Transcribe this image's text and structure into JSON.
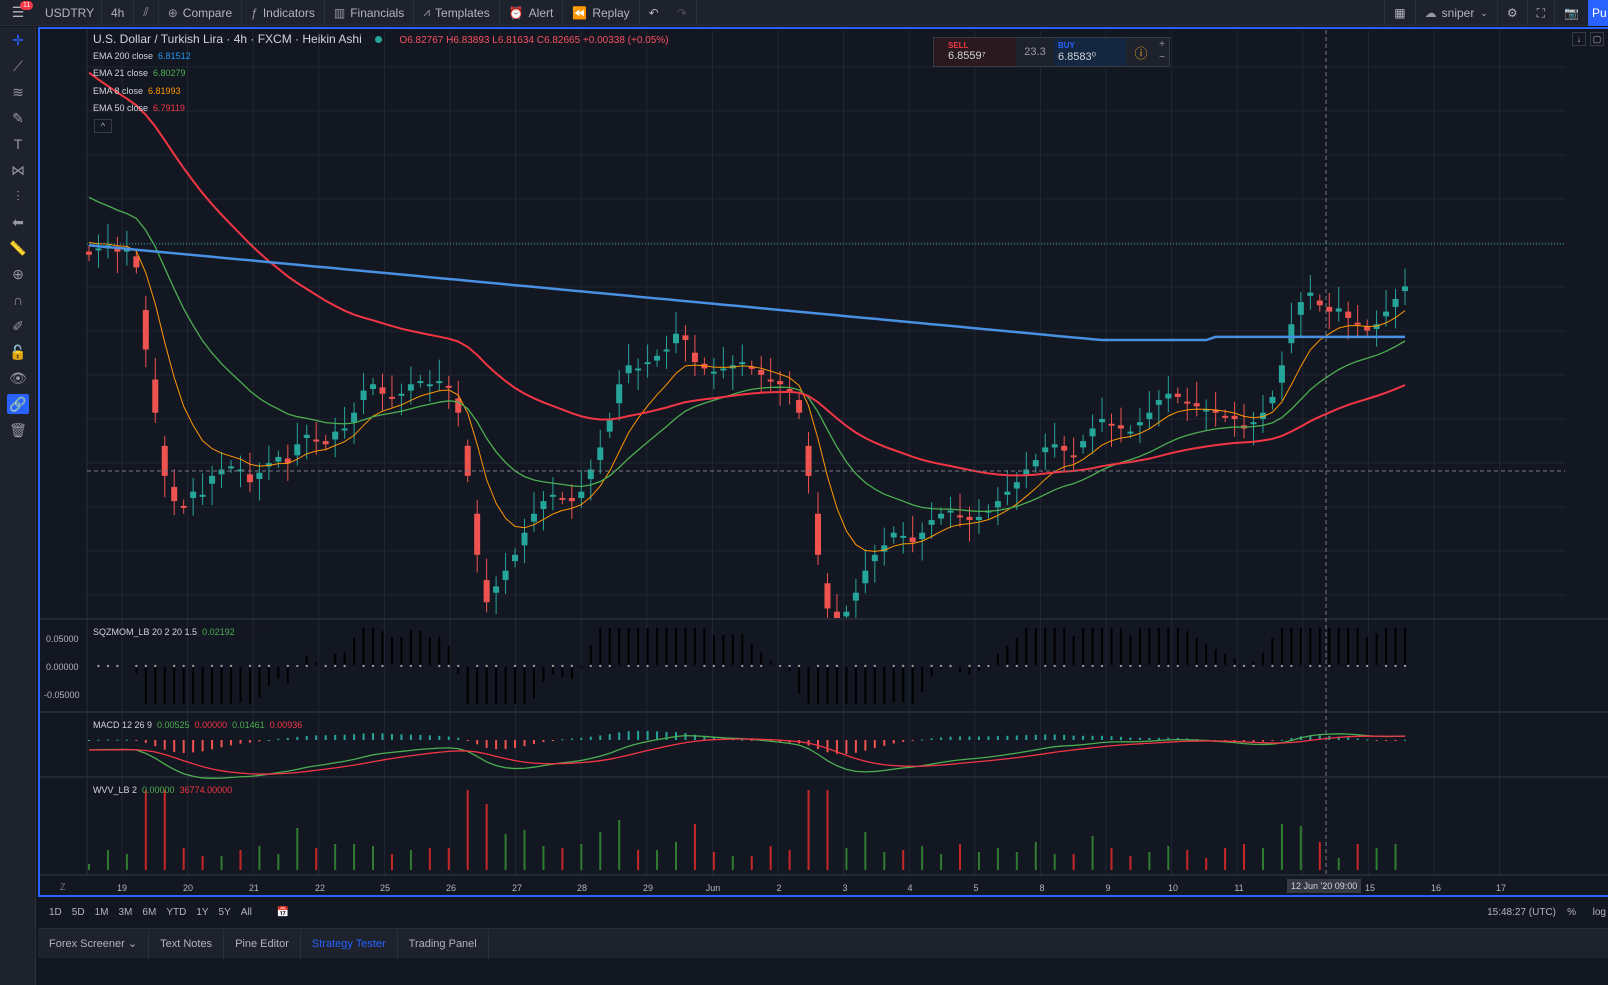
{
  "header": {
    "symbol": "USDTRY",
    "interval": "4h",
    "compare": "Compare",
    "indicators": "Indicators",
    "financials": "Financials",
    "templates": "Templates",
    "alert": "Alert",
    "replay": "Replay",
    "notif_count": "11",
    "layout_name": "sniper",
    "publish": "Pu"
  },
  "legend": {
    "title": "U.S. Dollar / Turkish Lira · 4h · FXCM · Heikin Ashi",
    "ohlc": "O6.82767  H6.83893  L6.81634  C6.82665  +0.00338 (+0.05%)"
  },
  "emas": [
    {
      "label": "EMA 200 close",
      "value": "6.81512",
      "color": "#2196f3"
    },
    {
      "label": "EMA 21 close",
      "value": "6.80279",
      "color": "#4caf50"
    },
    {
      "label": "EMA 8 close",
      "value": "6.81993",
      "color": "#ff9800"
    },
    {
      "label": "EMA 50 close",
      "value": "6.79119",
      "color": "#f23645"
    }
  ],
  "trade": {
    "sell_label": "SELL",
    "sell_value": "6.8559⁷",
    "spread": "23.3",
    "buy_label": "BUY",
    "buy_value": "6.8583⁰",
    "info_icon": "info-icon"
  },
  "indicators": {
    "sqz": {
      "name": "SQZMOM_LB 20 2 20 1.5",
      "v1": "0.02192",
      "v2": "0.00000"
    },
    "macd": {
      "name": "MACD 12 26 9",
      "v1": "0.00525",
      "v2": "0.00000",
      "v3": "0.01461",
      "v4": "0.00936"
    },
    "wvv": {
      "name": "WVV_LB 2",
      "v1": "0.00000",
      "v2": "36774.00000"
    }
  },
  "sqz_axis": [
    "0.05000",
    "0.00000",
    "-0.05000"
  ],
  "x_labels": [
    "19",
    "20",
    "21",
    "22",
    "25",
    "26",
    "27",
    "28",
    "29",
    "Jun",
    "2",
    "3",
    "4",
    "5",
    "8",
    "9",
    "10",
    "11",
    "15",
    "16",
    "17"
  ],
  "x_highlight": "12 Jun '20   09:00",
  "z_label": "Z",
  "bottom": {
    "ranges": [
      "1D",
      "5D",
      "1M",
      "3M",
      "6M",
      "YTD",
      "1Y",
      "5Y",
      "All"
    ],
    "time": "15:48:27 (UTC)",
    "pct": "%",
    "log": "log"
  },
  "tabs": [
    {
      "label": "Forex Screener ⌄",
      "active": false
    },
    {
      "label": "Text Notes",
      "active": false
    },
    {
      "label": "Pine Editor",
      "active": false
    },
    {
      "label": "Strategy Tester",
      "active": true
    },
    {
      "label": "Trading Panel",
      "active": false
    }
  ],
  "colors": {
    "up": "#26a69a",
    "down": "#ef5350",
    "ema200": "#4a90e2",
    "ema50": "#f23645",
    "ema21": "#4caf50",
    "ema8": "#ff9800",
    "accent": "#2962ff"
  },
  "chart_data": {
    "type": "candlestick",
    "title": "U.S. Dollar / Turkish Lira · 4h · FXCM · Heikin Ashi",
    "price_range": [
      6.725,
      6.87
    ],
    "candles_close": [
      6.84,
      6.842,
      6.843,
      6.841,
      6.842,
      6.836,
      6.81,
      6.79,
      6.77,
      6.762,
      6.76,
      6.765,
      6.764,
      6.77,
      6.772,
      6.773,
      6.772,
      6.768,
      6.771,
      6.774,
      6.776,
      6.774,
      6.78,
      6.783,
      6.781,
      6.78,
      6.784,
      6.785,
      6.79,
      6.797,
      6.799,
      6.796,
      6.795,
      6.796,
      6.799,
      6.8,
      6.799,
      6.8,
      6.798,
      6.79,
      6.77,
      6.745,
      6.73,
      6.735,
      6.74,
      6.745,
      6.752,
      6.758,
      6.762,
      6.764,
      6.763,
      6.762,
      6.765,
      6.772,
      6.779,
      6.788,
      6.799,
      6.805,
      6.804,
      6.806,
      6.808,
      6.81,
      6.815,
      6.813,
      6.806,
      6.804,
      6.803,
      6.804,
      6.805,
      6.806,
      6.804,
      6.802,
      6.8,
      6.799,
      6.797,
      6.79,
      6.77,
      6.745,
      6.728,
      6.725,
      6.727,
      6.733,
      6.74,
      6.745,
      6.748,
      6.752,
      6.751,
      6.749,
      6.752,
      6.756,
      6.758,
      6.759,
      6.757,
      6.756,
      6.757,
      6.759,
      6.762,
      6.765,
      6.768,
      6.772,
      6.775,
      6.779,
      6.78,
      6.778,
      6.776,
      6.781,
      6.785,
      6.788,
      6.786,
      6.785,
      6.784,
      6.787,
      6.79,
      6.794,
      6.796,
      6.795,
      6.793,
      6.792,
      6.791,
      6.79,
      6.789,
      6.788,
      6.785,
      6.787,
      6.79,
      6.795,
      6.805,
      6.818,
      6.825,
      6.828,
      6.824,
      6.822,
      6.823,
      6.82,
      6.818,
      6.816,
      6.818,
      6.822,
      6.826,
      6.83
    ]
  }
}
